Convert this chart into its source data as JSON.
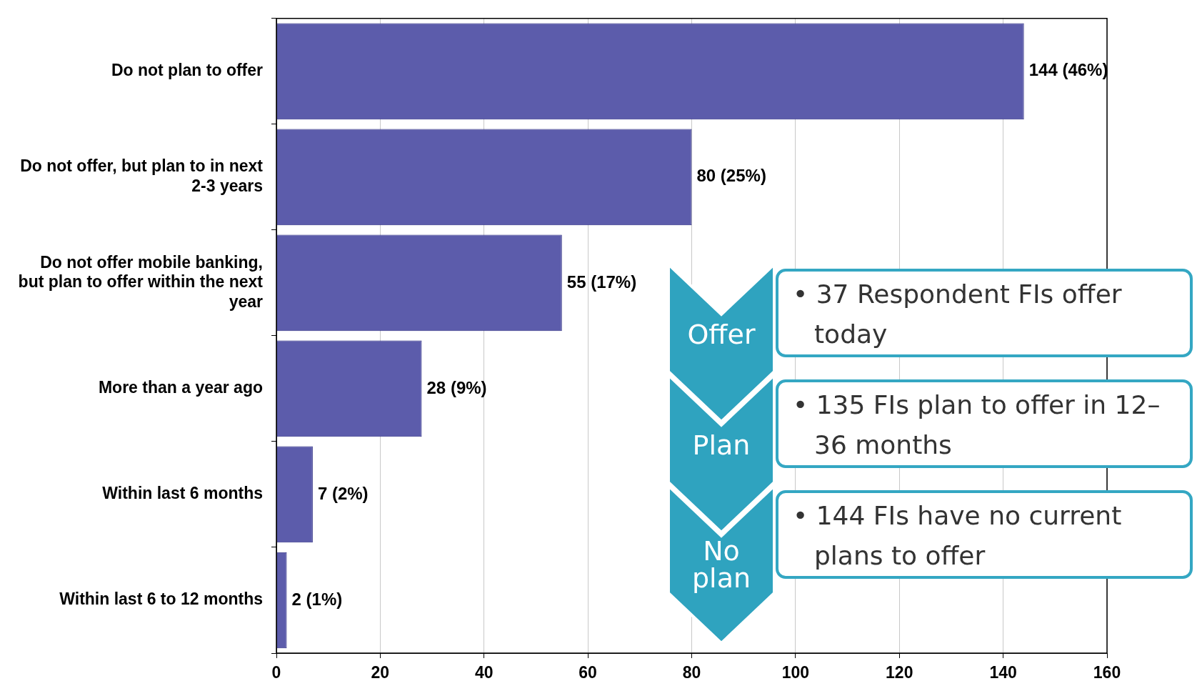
{
  "chart_data": {
    "type": "bar",
    "orientation": "horizontal",
    "categories": [
      "Do not plan to offer",
      "Do not offer, but plan to in next 2-3 years",
      "Do not offer mobile banking, but plan to offer within the next year",
      "More than a year ago",
      "Within last 6 months",
      "Within last 6 to 12 months"
    ],
    "values": [
      144,
      80,
      55,
      28,
      7,
      2
    ],
    "value_labels": [
      "144 (46%)",
      "80 (25%)",
      "55 (17%)",
      "28 (9%)",
      "7 (2%)",
      "2 (1%)"
    ],
    "color": "#5c5cab",
    "xlim": [
      0,
      160
    ],
    "xticks": [
      0,
      20,
      40,
      60,
      80,
      100,
      120,
      140,
      160
    ],
    "grid": "x",
    "legend": false,
    "annotations": [
      "Offer",
      "• 37 Respondent FIs offer today",
      "Plan",
      "• 135 FIs plan to offer in 12–36 months",
      "No plan",
      "• 144 FIs have no current plans to offer"
    ]
  }
}
